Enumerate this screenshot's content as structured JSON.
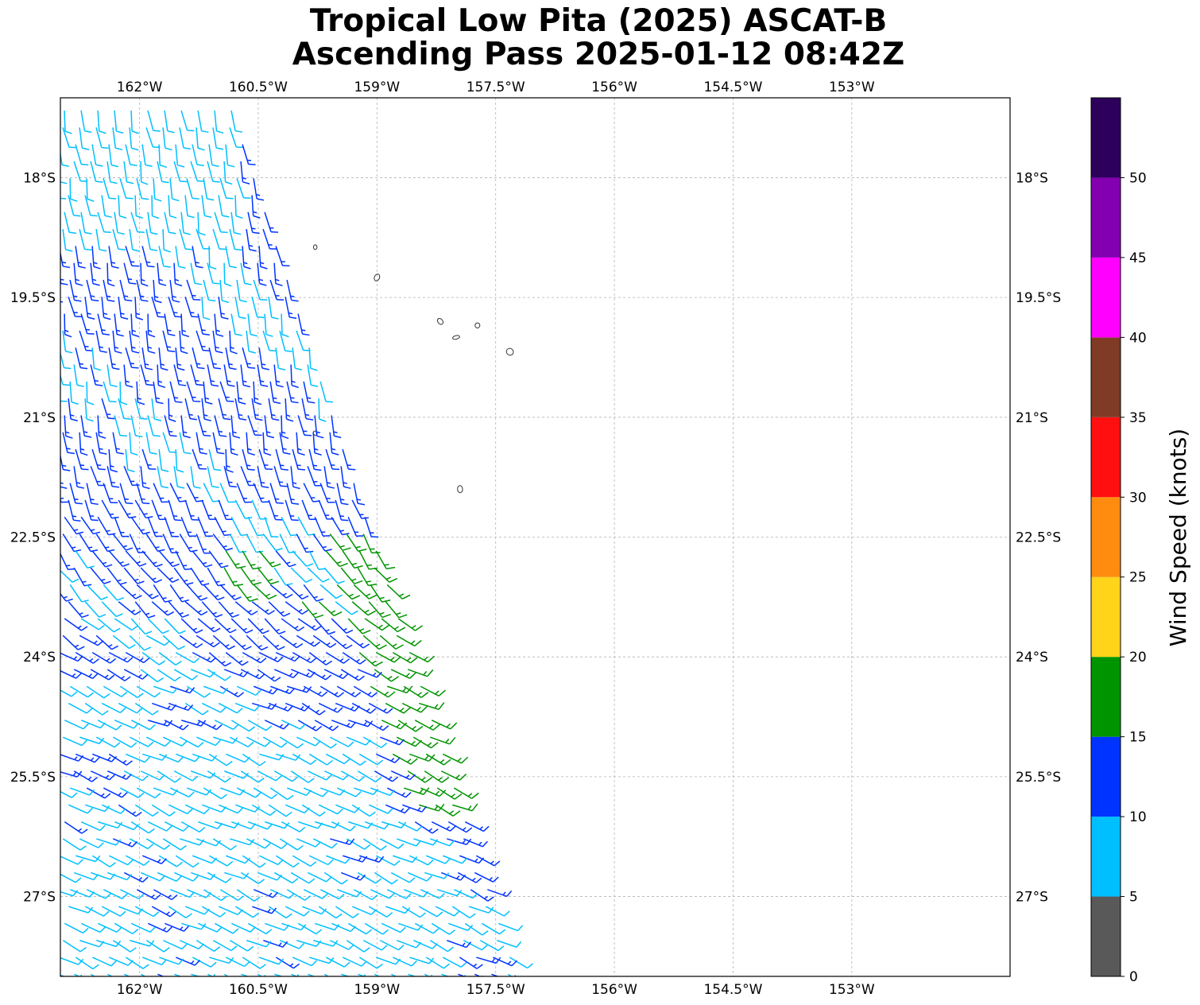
{
  "title": {
    "line1": "Tropical Low Pita (2025) ASCAT-B",
    "line2": "Ascending Pass 2025-01-12 08:42Z"
  },
  "map": {
    "lon_range": [
      -163.0,
      -151.0
    ],
    "lat_range": [
      -17.0,
      -28.0
    ],
    "lon_ticks": [
      {
        "value": -162.0,
        "label": "162°W"
      },
      {
        "value": -160.5,
        "label": "160.5°W"
      },
      {
        "value": -159.0,
        "label": "159°W"
      },
      {
        "value": -157.5,
        "label": "157.5°W"
      },
      {
        "value": -156.0,
        "label": "156°W"
      },
      {
        "value": -154.5,
        "label": "154.5°W"
      },
      {
        "value": -153.0,
        "label": "153°W"
      }
    ],
    "lat_ticks": [
      {
        "value": -18.0,
        "label": "18°S"
      },
      {
        "value": -19.5,
        "label": "19.5°S"
      },
      {
        "value": -21.0,
        "label": "21°S"
      },
      {
        "value": -22.5,
        "label": "22.5°S"
      },
      {
        "value": -24.0,
        "label": "24°S"
      },
      {
        "value": -25.5,
        "label": "25.5°S"
      },
      {
        "value": -27.0,
        "label": "27°S"
      }
    ],
    "gridlines": true,
    "islands": [
      {
        "lon": -159.78,
        "lat": -18.87
      },
      {
        "lon": -159.0,
        "lat": -19.25
      },
      {
        "lon": -158.2,
        "lat": -19.8
      },
      {
        "lon": -158.0,
        "lat": -20.0
      },
      {
        "lon": -157.73,
        "lat": -19.85
      },
      {
        "lon": -157.32,
        "lat": -20.18
      },
      {
        "lon": -159.78,
        "lat": -21.2
      },
      {
        "lon": -157.95,
        "lat": -21.9
      }
    ]
  },
  "swath": {
    "description": "ASCAT-B wind barb swath along the western edge of the map",
    "top_right": {
      "lon": -160.8,
      "lat": -17.1
    },
    "bottom_right": {
      "lon": -157.25,
      "lat": -27.8
    },
    "left_edge_lon": -163.0
  },
  "colorbar": {
    "label": "Wind Speed (knots)",
    "max": 55,
    "bins": [
      {
        "from": 0,
        "to": 5,
        "color": "#595959"
      },
      {
        "from": 5,
        "to": 10,
        "color": "#00bfff"
      },
      {
        "from": 10,
        "to": 15,
        "color": "#0033ff"
      },
      {
        "from": 15,
        "to": 20,
        "color": "#009400"
      },
      {
        "from": 20,
        "to": 25,
        "color": "#ffd41a"
      },
      {
        "from": 25,
        "to": 30,
        "color": "#ff8c0f"
      },
      {
        "from": 30,
        "to": 35,
        "color": "#ff0f0f"
      },
      {
        "from": 35,
        "to": 40,
        "color": "#7f3b26"
      },
      {
        "from": 40,
        "to": 45,
        "color": "#ff00ff"
      },
      {
        "from": 45,
        "to": 50,
        "color": "#8300b0"
      },
      {
        "from": 50,
        "to": 55,
        "color": "#2d005c"
      }
    ],
    "ticks": [
      {
        "value": 0,
        "label": "0"
      },
      {
        "value": 5,
        "label": "5"
      },
      {
        "value": 10,
        "label": "10"
      },
      {
        "value": 15,
        "label": "15"
      },
      {
        "value": 20,
        "label": "20"
      },
      {
        "value": 25,
        "label": "25"
      },
      {
        "value": 30,
        "label": "30"
      },
      {
        "value": 35,
        "label": "35"
      },
      {
        "value": 40,
        "label": "40"
      },
      {
        "value": 45,
        "label": "45"
      },
      {
        "value": 50,
        "label": "50"
      }
    ]
  }
}
